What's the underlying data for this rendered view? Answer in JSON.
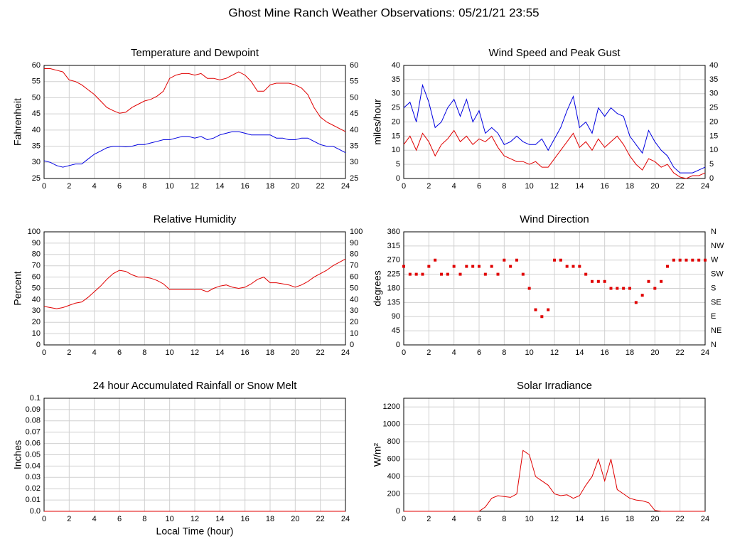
{
  "title": "Ghost Mine Ranch Weather Observations: 05/21/21 23:55",
  "chart_data": [
    {
      "type": "line",
      "title": "Temperature and Dewpoint",
      "y_label": "Fahrenheit",
      "grid": true,
      "right_axis": true,
      "xlim": [
        0,
        24
      ],
      "xticks": [
        0,
        2,
        4,
        6,
        8,
        10,
        12,
        14,
        16,
        18,
        20,
        22,
        24
      ],
      "ylim": [
        25,
        60
      ],
      "yticks": [
        25,
        30,
        35,
        40,
        45,
        50,
        55,
        60
      ],
      "x": [
        0,
        0.5,
        1,
        1.5,
        2,
        2.5,
        3,
        3.5,
        4,
        4.5,
        5,
        5.5,
        6,
        6.5,
        7,
        7.5,
        8,
        8.5,
        9,
        9.5,
        10,
        10.5,
        11,
        11.5,
        12,
        12.5,
        13,
        13.5,
        14,
        14.5,
        15,
        15.5,
        16,
        16.5,
        17,
        17.5,
        18,
        18.5,
        19,
        19.5,
        20,
        20.5,
        21,
        21.5,
        22,
        22.5,
        23,
        23.5,
        24
      ],
      "series": [
        {
          "color": "#e00000",
          "values": [
            59,
            59,
            58.5,
            58,
            55.5,
            55,
            54,
            52.5,
            51,
            49,
            47,
            46,
            45.2,
            45.5,
            47,
            48,
            49,
            49.5,
            50.5,
            52,
            56,
            57,
            57.5,
            57.5,
            57,
            57.5,
            56,
            56,
            55.5,
            56,
            57,
            58,
            57,
            55,
            52,
            52,
            54,
            54.5,
            54.5,
            54.5,
            54,
            53,
            51,
            47,
            44,
            42.5,
            41.5,
            40.5,
            39.5
          ]
        },
        {
          "color": "#0000e0",
          "values": [
            30.5,
            30,
            29,
            28.5,
            29,
            29.5,
            29.5,
            31,
            32.5,
            33.5,
            34.5,
            35,
            35,
            34.8,
            35,
            35.5,
            35.5,
            36,
            36.5,
            37,
            37,
            37.5,
            38,
            38,
            37.5,
            38,
            37,
            37.5,
            38.5,
            39,
            39.5,
            39.5,
            39,
            38.5,
            38.5,
            38.5,
            38.5,
            37.5,
            37.5,
            37,
            37,
            37.5,
            37.5,
            36.5,
            35.5,
            35,
            35,
            34,
            33
          ]
        }
      ]
    },
    {
      "type": "line",
      "title": "Wind Speed and Peak Gust",
      "y_label": "miles/hour",
      "grid": true,
      "right_axis": true,
      "xlim": [
        0,
        24
      ],
      "xticks": [
        0,
        2,
        4,
        6,
        8,
        10,
        12,
        14,
        16,
        18,
        20,
        22,
        24
      ],
      "ylim": [
        0,
        40
      ],
      "yticks": [
        0,
        5,
        10,
        15,
        20,
        25,
        30,
        35,
        40
      ],
      "x": [
        0,
        0.5,
        1,
        1.5,
        2,
        2.5,
        3,
        3.5,
        4,
        4.5,
        5,
        5.5,
        6,
        6.5,
        7,
        7.5,
        8,
        8.5,
        9,
        9.5,
        10,
        10.5,
        11,
        11.5,
        12,
        12.5,
        13,
        13.5,
        14,
        14.5,
        15,
        15.5,
        16,
        16.5,
        17,
        17.5,
        18,
        18.5,
        19,
        19.5,
        20,
        20.5,
        21,
        21.5,
        22,
        22.5,
        23,
        23.5,
        24
      ],
      "series": [
        {
          "color": "#0000e0",
          "values": [
            25,
            27,
            20,
            33,
            27,
            18,
            20,
            25,
            28,
            22,
            28,
            20,
            24,
            16,
            18,
            16,
            12,
            13,
            15,
            13,
            12,
            12,
            14,
            10,
            14,
            18,
            24,
            29,
            18,
            20,
            16,
            25,
            22,
            25,
            23,
            22,
            15,
            12,
            9,
            17,
            13,
            10,
            8,
            4,
            2,
            2,
            2,
            3,
            4
          ]
        },
        {
          "color": "#e00000",
          "values": [
            12,
            15,
            10,
            16,
            13,
            8,
            12,
            14,
            17,
            13,
            15,
            12,
            14,
            13,
            15,
            11,
            8,
            7,
            6,
            6,
            5,
            6,
            4,
            4,
            7,
            10,
            13,
            16,
            11,
            13,
            10,
            14,
            11,
            13,
            15,
            12,
            8,
            5,
            3,
            7,
            6,
            4,
            5,
            2,
            0.5,
            0,
            1,
            1,
            2
          ]
        }
      ]
    },
    {
      "type": "line",
      "title": "Relative Humidity",
      "y_label": "Percent",
      "grid": true,
      "right_axis": true,
      "xlim": [
        0,
        24
      ],
      "xticks": [
        0,
        2,
        4,
        6,
        8,
        10,
        12,
        14,
        16,
        18,
        20,
        22,
        24
      ],
      "ylim": [
        0,
        100
      ],
      "yticks": [
        0,
        10,
        20,
        30,
        40,
        50,
        60,
        70,
        80,
        90,
        100
      ],
      "x": [
        0,
        0.5,
        1,
        1.5,
        2,
        2.5,
        3,
        3.5,
        4,
        4.5,
        5,
        5.5,
        6,
        6.5,
        7,
        7.5,
        8,
        8.5,
        9,
        9.5,
        10,
        10.5,
        11,
        11.5,
        12,
        12.5,
        13,
        13.5,
        14,
        14.5,
        15,
        15.5,
        16,
        16.5,
        17,
        17.5,
        18,
        18.5,
        19,
        19.5,
        20,
        20.5,
        21,
        21.5,
        22,
        22.5,
        23,
        23.5,
        24
      ],
      "series": [
        {
          "color": "#e00000",
          "values": [
            34,
            33,
            32,
            33,
            35,
            37,
            38,
            42,
            47,
            52,
            58,
            63,
            66,
            65,
            62,
            60,
            60,
            59,
            57,
            54,
            49,
            49,
            49,
            49,
            49,
            49,
            47,
            50,
            52,
            53,
            51,
            50,
            51,
            54,
            58,
            60,
            55,
            55,
            54,
            53,
            51,
            53,
            56,
            60,
            63,
            66,
            70,
            73,
            76
          ]
        }
      ]
    },
    {
      "type": "scatter",
      "title": "Wind Direction",
      "y_label": "degrees",
      "grid": true,
      "xlim": [
        0,
        24
      ],
      "xticks": [
        0,
        2,
        4,
        6,
        8,
        10,
        12,
        14,
        16,
        18,
        20,
        22,
        24
      ],
      "ylim": [
        0,
        360
      ],
      "yticks": [
        0,
        45,
        90,
        135,
        180,
        225,
        270,
        315,
        360
      ],
      "y2lim": [
        0,
        360
      ],
      "y2ticks": [
        {
          "value": 0,
          "label": "N"
        },
        {
          "value": 45,
          "label": "NE"
        },
        {
          "value": 90,
          "label": "E"
        },
        {
          "value": 135,
          "label": "SE"
        },
        {
          "value": 180,
          "label": "S"
        },
        {
          "value": 225,
          "label": "SW"
        },
        {
          "value": 270,
          "label": "W"
        },
        {
          "value": 315,
          "label": "NW"
        },
        {
          "value": 360,
          "label": "N"
        }
      ],
      "x": [
        0,
        0.5,
        1,
        1.5,
        2,
        2.5,
        3,
        3.5,
        4,
        4.5,
        5,
        5.5,
        6,
        6.5,
        7,
        7.5,
        8,
        8.5,
        9,
        9.5,
        10,
        10.5,
        11,
        11.5,
        12,
        12.5,
        13,
        13.5,
        14,
        14.5,
        15,
        15.5,
        16,
        16.5,
        17,
        17.5,
        18,
        18.5,
        19,
        19.5,
        20,
        20.5,
        21,
        21.5,
        22,
        22.5,
        23,
        23.5,
        24
      ],
      "series": [
        {
          "color": "#e00000",
          "values": [
            250,
            225,
            225,
            225,
            250,
            270,
            225,
            225,
            250,
            225,
            250,
            250,
            250,
            225,
            250,
            225,
            270,
            250,
            270,
            225,
            180,
            112,
            90,
            112,
            270,
            270,
            250,
            250,
            250,
            225,
            202,
            202,
            202,
            180,
            180,
            180,
            180,
            135,
            158,
            202,
            180,
            202,
            250,
            270,
            270,
            270,
            270,
            270,
            270
          ]
        }
      ]
    },
    {
      "type": "line",
      "title": "24 hour Accumulated Rainfall or Snow Melt",
      "y_label": "Inches",
      "x_label": "Local Time (hour)",
      "grid": true,
      "xlim": [
        0,
        24
      ],
      "xticks": [
        0,
        2,
        4,
        6,
        8,
        10,
        12,
        14,
        16,
        18,
        20,
        22,
        24
      ],
      "ylim": [
        0,
        0.1
      ],
      "yticks": [
        {
          "value": 0,
          "label": "0.0"
        },
        0.01,
        0.02,
        0.03,
        0.04,
        0.05,
        0.06,
        0.07,
        0.08,
        0.09,
        0.1
      ],
      "x": [
        0,
        24
      ],
      "series": [
        {
          "color": "#e00000",
          "values": [
            0,
            0
          ]
        }
      ]
    },
    {
      "type": "line",
      "title": "Solar Irradiance",
      "y_label": "W/m²",
      "grid": true,
      "xlim": [
        0,
        24
      ],
      "xticks": [
        0,
        2,
        4,
        6,
        8,
        10,
        12,
        14,
        16,
        18,
        20,
        22,
        24
      ],
      "ylim": [
        0,
        1300
      ],
      "yticks": [
        0,
        200,
        400,
        600,
        800,
        1000,
        1200
      ],
      "x": [
        0,
        0.5,
        1,
        1.5,
        2,
        2.5,
        3,
        3.5,
        4,
        4.5,
        5,
        5.5,
        6,
        6.5,
        7,
        7.5,
        8,
        8.5,
        9,
        9.5,
        10,
        10.5,
        11,
        11.5,
        12,
        12.5,
        13,
        13.5,
        14,
        14.5,
        15,
        15.5,
        16,
        16.5,
        17,
        17.5,
        18,
        18.5,
        19,
        19.5,
        20,
        20.5,
        21,
        21.5,
        22,
        22.5,
        23,
        23.5,
        24
      ],
      "series": [
        {
          "color": "#e00000",
          "values": [
            0,
            0,
            0,
            0,
            0,
            0,
            0,
            0,
            0,
            0,
            0,
            0,
            0,
            50,
            150,
            180,
            170,
            160,
            200,
            700,
            650,
            400,
            350,
            300,
            200,
            180,
            190,
            150,
            180,
            300,
            400,
            600,
            350,
            600,
            250,
            200,
            150,
            130,
            120,
            100,
            10,
            0,
            0,
            0,
            0,
            0,
            0,
            0,
            0
          ]
        }
      ]
    }
  ]
}
